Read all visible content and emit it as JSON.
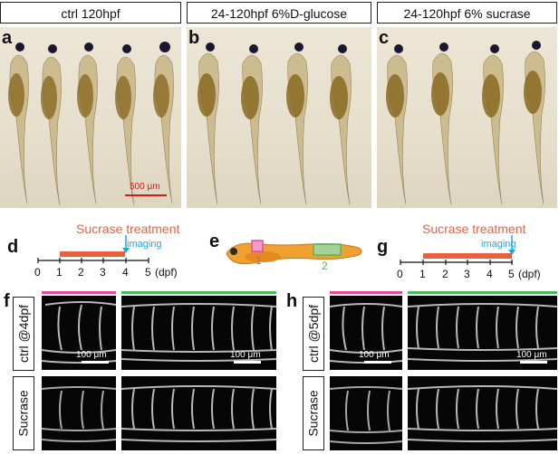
{
  "panels": {
    "a": {
      "letter": "a",
      "header": "ctrl  120hpf",
      "scale_bar": "500 μm"
    },
    "b": {
      "letter": "b",
      "header": "24-120hpf 6%D-glucose"
    },
    "c": {
      "letter": "c",
      "header": "24-120hpf 6% sucrase"
    },
    "d": {
      "letter": "d",
      "title": "Sucrase treatment",
      "imaging": "imaging",
      "ticks": [
        "0",
        "1",
        "2",
        "3",
        "4",
        "5"
      ],
      "unit": "(dpf)",
      "treatment_range": [
        1,
        4
      ],
      "imaging_at": 4
    },
    "e": {
      "letter": "e",
      "region_1": "1",
      "region_2": "2"
    },
    "g": {
      "letter": "g",
      "title": "Sucrase treatment",
      "imaging": "imaging",
      "ticks": [
        "0",
        "1",
        "2",
        "3",
        "4",
        "5"
      ],
      "unit": "(dpf)",
      "treatment_range": [
        1,
        5
      ],
      "imaging_at": 5
    },
    "f": {
      "letter": "f",
      "row1": "ctrl @4dpf",
      "row2": "Sucrase",
      "scale_left": "100 μm",
      "scale_right": "100 μm"
    },
    "h": {
      "letter": "h",
      "row1": "ctrl @5dpf",
      "row2": "Sucrase",
      "scale_left": "100 μm",
      "scale_right": "100 μm"
    }
  },
  "colors": {
    "treatment": "#e8603c",
    "imaging": "#2aa4d8",
    "region_1": "#e84a9a",
    "region_2": "#4bb85a"
  }
}
